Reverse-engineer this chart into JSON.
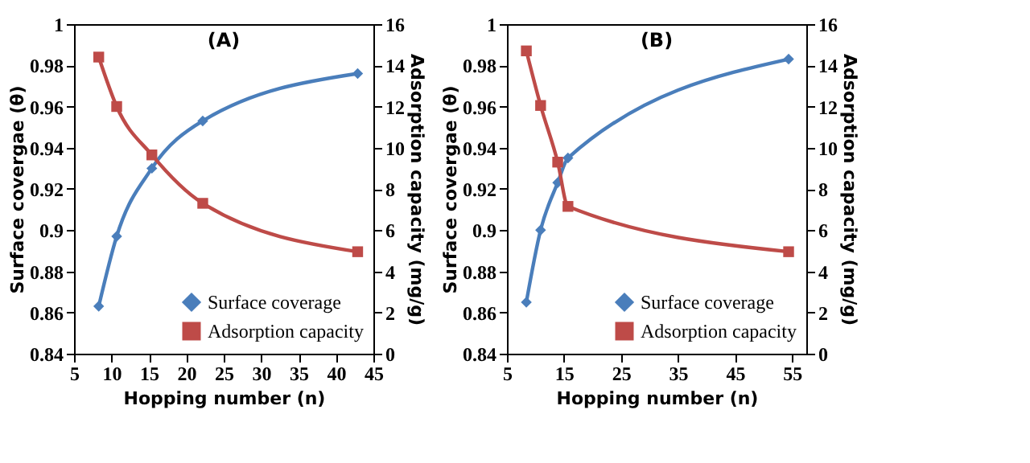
{
  "chart_data": [
    {
      "type": "line",
      "title": "(A)",
      "xlabel": "Hopping number (n)",
      "ylabel": "Surface covergae (θ)",
      "y2label": "Adsorption capacity (mg/g)",
      "xlim": [
        5,
        45
      ],
      "xticks": [
        5,
        10,
        15,
        20,
        25,
        30,
        35,
        40,
        45
      ],
      "ylim": [
        0.84,
        1
      ],
      "yticks": [
        0.84,
        0.86,
        0.88,
        0.9,
        0.92,
        0.94,
        0.96,
        0.98,
        1
      ],
      "y2lim": [
        0,
        16
      ],
      "y2ticks": [
        0,
        2,
        4,
        6,
        8,
        10,
        12,
        14,
        16
      ],
      "grid": false,
      "legend": "bottom right",
      "series": [
        {
          "name": "Surface coverage",
          "color": "#4a7ebb",
          "marker": "diamond",
          "x": [
            8.3,
            10.7,
            15.4,
            22.2,
            42.9
          ],
          "values": [
            0.863,
            0.897,
            0.93,
            0.953,
            0.976
          ]
        },
        {
          "name": "Adsorption capacity",
          "color": "#be4b48",
          "marker": "square",
          "axis": "y2",
          "x": [
            8.3,
            10.7,
            15.4,
            22.2,
            42.9
          ],
          "values": [
            14.4,
            12.0,
            9.65,
            7.3,
            4.95
          ]
        }
      ]
    },
    {
      "type": "line",
      "title": "(B)",
      "xlabel": "Hopping number (n)",
      "ylabel": "Surface covergae (θ)",
      "y2label": "Adsorption capacity (mg/g)",
      "xlim": [
        5,
        57.5
      ],
      "xticks": [
        5,
        15,
        25,
        35,
        45,
        55
      ],
      "ylim": [
        0.84,
        1
      ],
      "yticks": [
        0.84,
        0.86,
        0.88,
        0.9,
        0.92,
        0.94,
        0.96,
        0.98,
        1
      ],
      "y2lim": [
        0,
        16
      ],
      "y2ticks": [
        0,
        2,
        4,
        6,
        8,
        10,
        12,
        14,
        16
      ],
      "grid": false,
      "legend": "bottom right",
      "series": [
        {
          "name": "Surface coverage",
          "color": "#4a7ebb",
          "marker": "diamond",
          "x": [
            8.4,
            10.9,
            13.9,
            15.7,
            54.4
          ],
          "values": [
            0.865,
            0.9,
            0.923,
            0.935,
            0.983
          ]
        },
        {
          "name": "Adsorption capacity",
          "color": "#be4b48",
          "marker": "square",
          "axis": "y2",
          "x": [
            8.4,
            10.9,
            13.9,
            15.7,
            54.4
          ],
          "values": [
            14.7,
            12.05,
            9.3,
            7.15,
            4.95
          ]
        }
      ]
    }
  ]
}
